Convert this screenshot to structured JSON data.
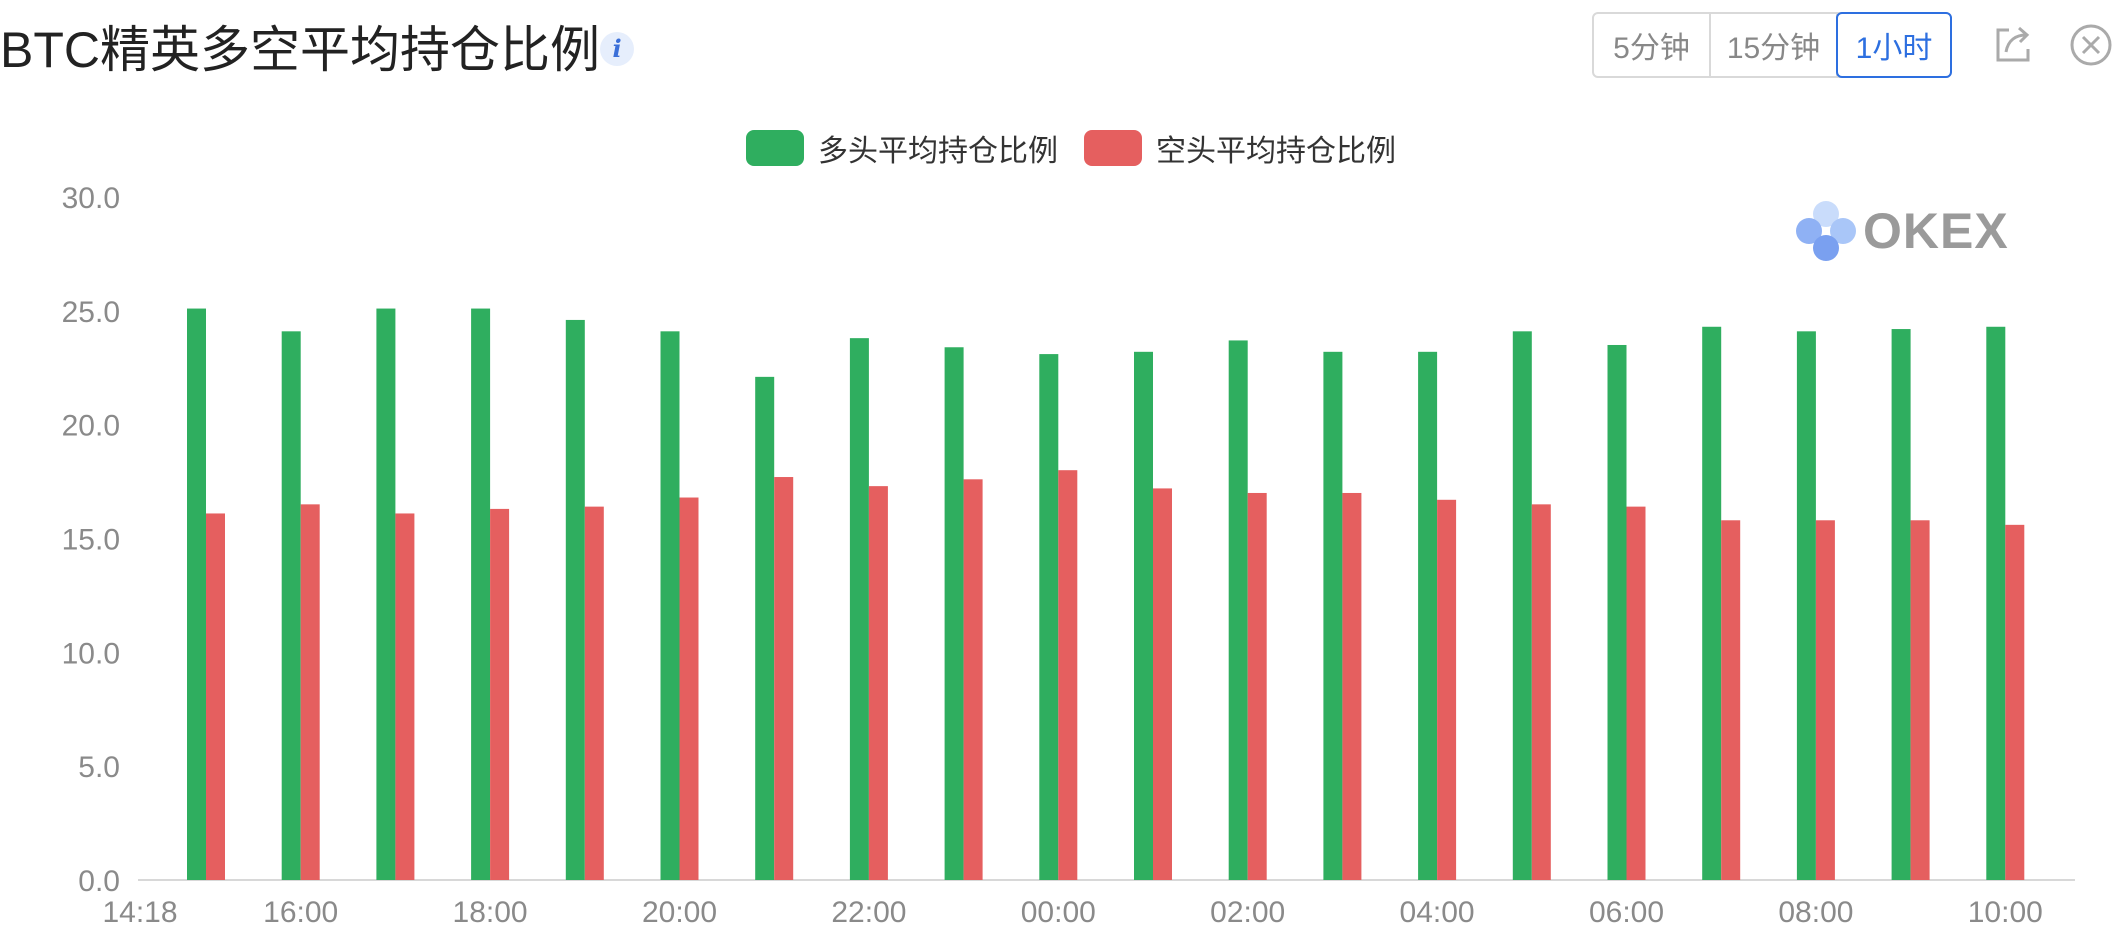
{
  "header": {
    "title": "BTC精英多空平均持仓比例",
    "info_icon": "i"
  },
  "tabs": [
    {
      "label": "5分钟",
      "active": false
    },
    {
      "label": "15分钟",
      "active": false
    },
    {
      "label": "1小时",
      "active": true
    }
  ],
  "toolbar": {
    "share_icon": "share-icon",
    "close_icon": "close-icon"
  },
  "watermark": {
    "text": "OKEX"
  },
  "colors": {
    "long": "#2fae5f",
    "short": "#e55f5f",
    "active_tab": "#2d6fe0",
    "axis_text": "#8a8a8a"
  },
  "chart_data": {
    "type": "bar",
    "title": "BTC精英多空平均持仓比例",
    "legend_position": "top-center",
    "grid": false,
    "ylim": [
      0,
      30
    ],
    "y_ticks": [
      "0.0",
      "5.0",
      "10.0",
      "15.0",
      "20.0",
      "25.0",
      "30.0"
    ],
    "x_tick_labels": [
      "14:18",
      "16:00",
      "18:00",
      "20:00",
      "22:00",
      "00:00",
      "02:00",
      "04:00",
      "06:00",
      "08:00",
      "10:00"
    ],
    "categories": [
      "15:00",
      "16:00",
      "17:00",
      "18:00",
      "19:00",
      "20:00",
      "21:00",
      "22:00",
      "23:00",
      "00:00",
      "01:00",
      "02:00",
      "03:00",
      "04:00",
      "05:00",
      "06:00",
      "07:00",
      "08:00",
      "09:00",
      "10:00"
    ],
    "series": [
      {
        "name": "多头平均持仓比例",
        "color": "#2fae5f",
        "values": [
          25.1,
          24.1,
          25.1,
          25.1,
          24.6,
          24.1,
          22.1,
          23.8,
          23.4,
          23.1,
          23.2,
          23.7,
          23.2,
          23.2,
          24.1,
          23.5,
          24.3,
          24.1,
          24.2,
          24.3
        ]
      },
      {
        "name": "空头平均持仓比例",
        "color": "#e55f5f",
        "values": [
          16.1,
          16.5,
          16.1,
          16.3,
          16.4,
          16.8,
          17.7,
          17.3,
          17.6,
          18.0,
          17.2,
          17.0,
          17.0,
          16.7,
          16.5,
          16.4,
          15.8,
          15.8,
          15.8,
          15.6
        ]
      }
    ]
  }
}
